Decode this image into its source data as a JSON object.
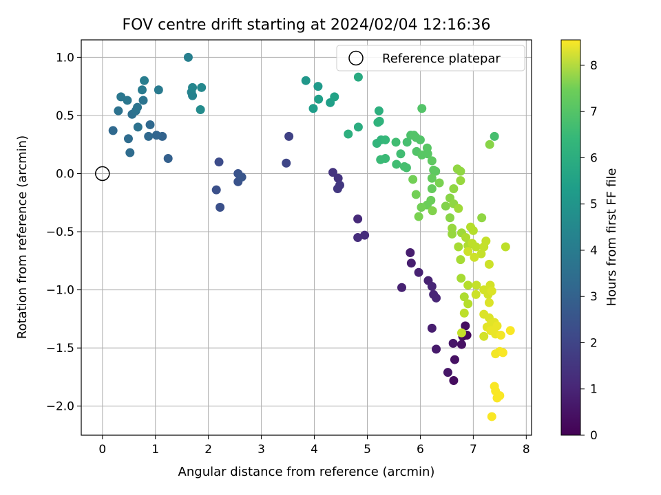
{
  "chart_data": {
    "type": "scatter",
    "title": "FOV centre drift starting at 2024/02/04 12:16:36",
    "xlabel": "Angular distance from reference (arcmin)",
    "ylabel": "Rotation from reference (arcmin)",
    "xlim": [
      -0.4,
      8.1
    ],
    "ylim": [
      -2.25,
      1.15
    ],
    "xticks": [
      "0",
      "1",
      "2",
      "3",
      "4",
      "5",
      "6",
      "7",
      "8"
    ],
    "yticks": [
      "1.0",
      "0.5",
      "0.0",
      "−0.5",
      "−1.0",
      "−1.5",
      "−2.0"
    ],
    "grid": true,
    "legend": {
      "position": "top-right",
      "entries": [
        "Reference platepar"
      ]
    },
    "reference": {
      "x": 0.0,
      "y": 0.0
    },
    "colorbar": {
      "label": "Hours from first FF file",
      "range": [
        0,
        8.55
      ],
      "ticks": [
        "0",
        "1",
        "2",
        "3",
        "4",
        "5",
        "6",
        "7",
        "8"
      ],
      "colormap": "viridis"
    },
    "points": [
      {
        "x": 5.81,
        "y": -0.68,
        "h": 0.7
      },
      {
        "x": 5.83,
        "y": -0.77,
        "h": 0.7
      },
      {
        "x": 5.97,
        "y": -0.85,
        "h": 0.8
      },
      {
        "x": 5.65,
        "y": -0.98,
        "h": 0.8
      },
      {
        "x": 6.15,
        "y": -0.92,
        "h": 0.8
      },
      {
        "x": 6.22,
        "y": -0.97,
        "h": 0.9
      },
      {
        "x": 6.25,
        "y": -1.04,
        "h": 0.9
      },
      {
        "x": 6.3,
        "y": -1.07,
        "h": 0.9
      },
      {
        "x": 6.22,
        "y": -1.33,
        "h": 0.7
      },
      {
        "x": 6.3,
        "y": -1.51,
        "h": 0.6
      },
      {
        "x": 6.62,
        "y": -1.46,
        "h": 0.5
      },
      {
        "x": 6.65,
        "y": -1.6,
        "h": 0.4
      },
      {
        "x": 6.52,
        "y": -1.71,
        "h": 0.5
      },
      {
        "x": 6.63,
        "y": -1.78,
        "h": 0.3
      },
      {
        "x": 6.8,
        "y": -1.4,
        "h": 0.3
      },
      {
        "x": 6.85,
        "y": -1.31,
        "h": 0.3
      },
      {
        "x": 6.78,
        "y": -1.47,
        "h": 0.4
      },
      {
        "x": 6.88,
        "y": -1.39,
        "h": 0.2
      },
      {
        "x": 4.82,
        "y": -0.39,
        "h": 1.0
      },
      {
        "x": 4.82,
        "y": -0.55,
        "h": 1.1
      },
      {
        "x": 4.95,
        "y": -0.53,
        "h": 1.1
      },
      {
        "x": 4.35,
        "y": 0.01,
        "h": 1.3
      },
      {
        "x": 4.45,
        "y": -0.04,
        "h": 1.3
      },
      {
        "x": 4.48,
        "y": -0.1,
        "h": 1.4
      },
      {
        "x": 4.44,
        "y": -0.13,
        "h": 1.4
      },
      {
        "x": 3.52,
        "y": 0.32,
        "h": 1.7
      },
      {
        "x": 3.47,
        "y": 0.09,
        "h": 1.8
      },
      {
        "x": 2.2,
        "y": 0.1,
        "h": 2.0
      },
      {
        "x": 2.15,
        "y": -0.14,
        "h": 2.1
      },
      {
        "x": 2.22,
        "y": -0.29,
        "h": 2.1
      },
      {
        "x": 2.56,
        "y": 0.0,
        "h": 2.2
      },
      {
        "x": 2.56,
        "y": -0.07,
        "h": 2.2
      },
      {
        "x": 2.63,
        "y": -0.03,
        "h": 2.3
      },
      {
        "x": 1.24,
        "y": 0.13,
        "h": 2.6
      },
      {
        "x": 1.13,
        "y": 0.32,
        "h": 2.7
      },
      {
        "x": 1.02,
        "y": 0.33,
        "h": 2.8
      },
      {
        "x": 0.87,
        "y": 0.32,
        "h": 2.9
      },
      {
        "x": 0.9,
        "y": 0.42,
        "h": 2.9
      },
      {
        "x": 0.2,
        "y": 0.37,
        "h": 2.9
      },
      {
        "x": 0.49,
        "y": 0.3,
        "h": 3.0
      },
      {
        "x": 0.52,
        "y": 0.18,
        "h": 3.0
      },
      {
        "x": 0.56,
        "y": 0.51,
        "h": 3.1
      },
      {
        "x": 0.67,
        "y": 0.4,
        "h": 3.2
      },
      {
        "x": 0.3,
        "y": 0.54,
        "h": 3.2
      },
      {
        "x": 0.63,
        "y": 0.54,
        "h": 3.2
      },
      {
        "x": 0.66,
        "y": 0.57,
        "h": 3.3
      },
      {
        "x": 0.77,
        "y": 0.63,
        "h": 3.3
      },
      {
        "x": 0.47,
        "y": 0.63,
        "h": 3.4
      },
      {
        "x": 0.35,
        "y": 0.66,
        "h": 3.4
      },
      {
        "x": 0.75,
        "y": 0.72,
        "h": 3.5
      },
      {
        "x": 1.06,
        "y": 0.72,
        "h": 3.5
      },
      {
        "x": 0.79,
        "y": 0.8,
        "h": 3.6
      },
      {
        "x": 1.62,
        "y": 1.0,
        "h": 3.7
      },
      {
        "x": 1.68,
        "y": 0.7,
        "h": 3.8
      },
      {
        "x": 1.7,
        "y": 0.67,
        "h": 3.8
      },
      {
        "x": 1.7,
        "y": 0.74,
        "h": 3.9
      },
      {
        "x": 1.87,
        "y": 0.74,
        "h": 4.0
      },
      {
        "x": 1.85,
        "y": 0.55,
        "h": 4.1
      },
      {
        "x": 3.84,
        "y": 0.8,
        "h": 4.5
      },
      {
        "x": 4.07,
        "y": 0.75,
        "h": 4.6
      },
      {
        "x": 3.98,
        "y": 0.56,
        "h": 4.7
      },
      {
        "x": 4.08,
        "y": 0.64,
        "h": 4.8
      },
      {
        "x": 4.3,
        "y": 0.61,
        "h": 4.8
      },
      {
        "x": 4.38,
        "y": 0.66,
        "h": 4.9
      },
      {
        "x": 4.83,
        "y": 0.83,
        "h": 5.2
      },
      {
        "x": 4.83,
        "y": 0.4,
        "h": 5.3
      },
      {
        "x": 4.64,
        "y": 0.34,
        "h": 5.4
      },
      {
        "x": 5.22,
        "y": 0.54,
        "h": 5.4
      },
      {
        "x": 5.2,
        "y": 0.44,
        "h": 5.5
      },
      {
        "x": 5.23,
        "y": 0.45,
        "h": 5.5
      },
      {
        "x": 5.18,
        "y": 0.26,
        "h": 5.6
      },
      {
        "x": 5.26,
        "y": 0.29,
        "h": 5.6
      },
      {
        "x": 5.34,
        "y": 0.29,
        "h": 5.7
      },
      {
        "x": 5.25,
        "y": 0.12,
        "h": 5.8
      },
      {
        "x": 5.34,
        "y": 0.13,
        "h": 5.8
      },
      {
        "x": 5.54,
        "y": 0.27,
        "h": 5.9
      },
      {
        "x": 5.55,
        "y": 0.08,
        "h": 5.9
      },
      {
        "x": 5.63,
        "y": 0.17,
        "h": 5.9
      },
      {
        "x": 5.7,
        "y": 0.06,
        "h": 6.0
      },
      {
        "x": 5.74,
        "y": 0.05,
        "h": 6.0
      },
      {
        "x": 5.75,
        "y": 0.27,
        "h": 6.0
      },
      {
        "x": 5.82,
        "y": 0.33,
        "h": 6.1
      },
      {
        "x": 5.88,
        "y": 0.33,
        "h": 6.2
      },
      {
        "x": 5.92,
        "y": 0.31,
        "h": 6.2
      },
      {
        "x": 5.93,
        "y": 0.19,
        "h": 6.2
      },
      {
        "x": 6.0,
        "y": 0.29,
        "h": 6.2
      },
      {
        "x": 6.03,
        "y": 0.56,
        "h": 6.2
      },
      {
        "x": 6.03,
        "y": 0.16,
        "h": 6.3
      },
      {
        "x": 6.13,
        "y": 0.22,
        "h": 6.3
      },
      {
        "x": 6.14,
        "y": 0.17,
        "h": 6.3
      },
      {
        "x": 6.22,
        "y": 0.11,
        "h": 6.4
      },
      {
        "x": 6.25,
        "y": 0.03,
        "h": 6.4
      },
      {
        "x": 6.29,
        "y": 0.02,
        "h": 6.4
      },
      {
        "x": 6.22,
        "y": -0.04,
        "h": 6.5
      },
      {
        "x": 6.22,
        "y": -0.13,
        "h": 6.5
      },
      {
        "x": 6.2,
        "y": -0.23,
        "h": 6.6
      },
      {
        "x": 6.13,
        "y": -0.27,
        "h": 6.6
      },
      {
        "x": 6.02,
        "y": -0.29,
        "h": 6.7
      },
      {
        "x": 5.92,
        "y": -0.18,
        "h": 6.7
      },
      {
        "x": 5.86,
        "y": -0.05,
        "h": 6.7
      },
      {
        "x": 5.97,
        "y": -0.37,
        "h": 6.8
      },
      {
        "x": 6.36,
        "y": -0.08,
        "h": 6.8
      },
      {
        "x": 6.23,
        "y": -0.32,
        "h": 6.9
      },
      {
        "x": 6.48,
        "y": -0.28,
        "h": 6.9
      },
      {
        "x": 6.56,
        "y": -0.38,
        "h": 7.0
      },
      {
        "x": 6.56,
        "y": -0.21,
        "h": 7.0
      },
      {
        "x": 6.63,
        "y": -0.13,
        "h": 7.1
      },
      {
        "x": 6.63,
        "y": -0.26,
        "h": 7.1
      },
      {
        "x": 6.6,
        "y": -0.47,
        "h": 7.2
      },
      {
        "x": 6.6,
        "y": -0.52,
        "h": 7.2
      },
      {
        "x": 6.7,
        "y": 0.04,
        "h": 7.1
      },
      {
        "x": 6.76,
        "y": 0.02,
        "h": 7.1
      },
      {
        "x": 6.76,
        "y": -0.06,
        "h": 7.2
      },
      {
        "x": 6.72,
        "y": -0.3,
        "h": 7.3
      },
      {
        "x": 6.78,
        "y": -0.51,
        "h": 7.3
      },
      {
        "x": 6.72,
        "y": -0.63,
        "h": 7.4
      },
      {
        "x": 6.76,
        "y": -0.74,
        "h": 7.4
      },
      {
        "x": 6.9,
        "y": -0.62,
        "h": 7.5
      },
      {
        "x": 6.86,
        "y": -0.55,
        "h": 7.5
      },
      {
        "x": 6.95,
        "y": -0.46,
        "h": 7.6
      },
      {
        "x": 7.0,
        "y": -0.49,
        "h": 7.6
      },
      {
        "x": 6.98,
        "y": -0.6,
        "h": 7.7
      },
      {
        "x": 7.05,
        "y": -0.63,
        "h": 7.7
      },
      {
        "x": 7.16,
        "y": -0.38,
        "h": 7.1
      },
      {
        "x": 7.2,
        "y": -0.63,
        "h": 7.8
      },
      {
        "x": 7.15,
        "y": -0.69,
        "h": 7.8
      },
      {
        "x": 7.24,
        "y": -0.58,
        "h": 7.8
      },
      {
        "x": 6.9,
        "y": -0.67,
        "h": 7.9
      },
      {
        "x": 7.02,
        "y": -0.72,
        "h": 7.9
      },
      {
        "x": 7.3,
        "y": -0.78,
        "h": 7.9
      },
      {
        "x": 6.77,
        "y": -0.9,
        "h": 7.4
      },
      {
        "x": 6.9,
        "y": -0.96,
        "h": 7.6
      },
      {
        "x": 7.06,
        "y": -0.96,
        "h": 7.8
      },
      {
        "x": 7.05,
        "y": -1.04,
        "h": 7.9
      },
      {
        "x": 6.83,
        "y": -1.06,
        "h": 7.5
      },
      {
        "x": 6.9,
        "y": -1.12,
        "h": 7.6
      },
      {
        "x": 7.2,
        "y": -1.0,
        "h": 8.0
      },
      {
        "x": 7.32,
        "y": -0.96,
        "h": 8.0
      },
      {
        "x": 7.28,
        "y": -1.04,
        "h": 8.0
      },
      {
        "x": 7.35,
        "y": -1.01,
        "h": 8.1
      },
      {
        "x": 7.3,
        "y": -1.11,
        "h": 8.1
      },
      {
        "x": 7.2,
        "y": -1.21,
        "h": 8.1
      },
      {
        "x": 7.3,
        "y": -1.24,
        "h": 8.1
      },
      {
        "x": 7.4,
        "y": -1.28,
        "h": 8.2
      },
      {
        "x": 7.34,
        "y": -1.29,
        "h": 8.2
      },
      {
        "x": 7.26,
        "y": -1.32,
        "h": 8.2
      },
      {
        "x": 7.45,
        "y": -1.31,
        "h": 8.3
      },
      {
        "x": 7.42,
        "y": -1.38,
        "h": 8.3
      },
      {
        "x": 7.52,
        "y": -1.39,
        "h": 8.4
      },
      {
        "x": 7.2,
        "y": -1.4,
        "h": 8.0
      },
      {
        "x": 6.83,
        "y": -1.2,
        "h": 7.7
      },
      {
        "x": 6.78,
        "y": -1.37,
        "h": 7.8
      },
      {
        "x": 7.33,
        "y": -1.35,
        "h": 8.3
      },
      {
        "x": 7.42,
        "y": -1.55,
        "h": 8.4
      },
      {
        "x": 7.5,
        "y": -1.53,
        "h": 8.4
      },
      {
        "x": 7.56,
        "y": -1.54,
        "h": 8.5
      },
      {
        "x": 7.7,
        "y": -1.35,
        "h": 8.5
      },
      {
        "x": 7.4,
        "y": -1.83,
        "h": 8.5
      },
      {
        "x": 7.42,
        "y": -1.87,
        "h": 8.5
      },
      {
        "x": 7.45,
        "y": -1.93,
        "h": 8.5
      },
      {
        "x": 7.5,
        "y": -1.91,
        "h": 8.5
      },
      {
        "x": 7.35,
        "y": -2.09,
        "h": 8.5
      },
      {
        "x": 7.31,
        "y": 0.25,
        "h": 7.0
      },
      {
        "x": 7.4,
        "y": 0.32,
        "h": 6.0
      },
      {
        "x": 7.61,
        "y": -0.63,
        "h": 7.7
      }
    ]
  }
}
